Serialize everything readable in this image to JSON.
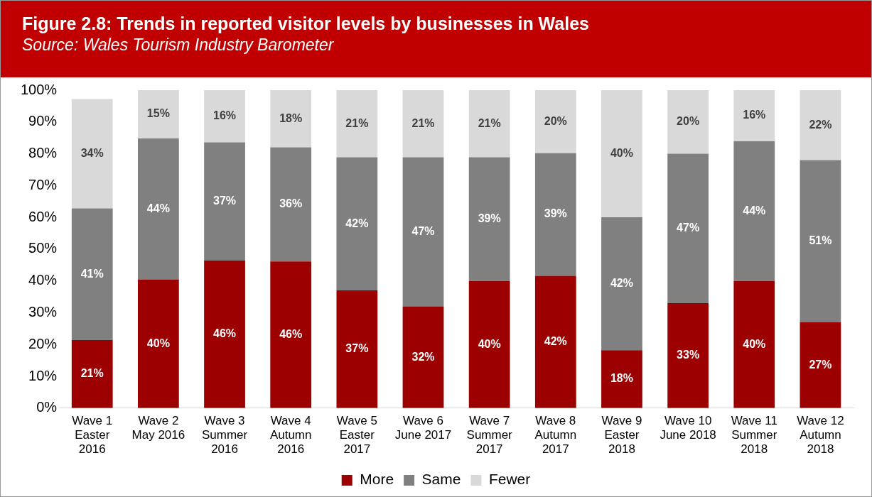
{
  "chart_data": {
    "type": "bar",
    "stacked": true,
    "title": "Figure 2.8: Trends in reported visitor levels by businesses in Wales",
    "subtitle": "Source: Wales Tourism Industry Barometer",
    "categories": [
      "Wave 1\nEaster\n2016",
      "Wave 2\nMay 2016",
      "Wave 3\nSummer\n2016",
      "Wave 4\nAutumn\n2016",
      "Wave 5\nEaster\n2017",
      "Wave 6\nJune 2017",
      "Wave 7\nSummer\n2017",
      "Wave 8\nAutumn\n2017",
      "Wave 9\nEaster\n2018",
      "Wave 10\nJune 2018",
      "Wave 11\nSummer\n2018",
      "Wave 12\nAutumn\n2018"
    ],
    "series": [
      {
        "name": "More",
        "color": "#9c0000",
        "values": [
          21.4,
          40.5,
          46.4,
          46.1,
          37.0,
          32.0,
          40.0,
          41.6,
          18.2,
          33.0,
          40.0,
          27.0
        ],
        "value_labels": [
          "21%",
          "40%",
          "46%",
          "46%",
          "37%",
          "32%",
          "40%",
          "42%",
          "18%",
          "33%",
          "40%",
          "27%"
        ]
      },
      {
        "name": "Same",
        "color": "#808080",
        "values": [
          41.4,
          44.3,
          37.2,
          35.9,
          41.9,
          46.9,
          38.9,
          38.6,
          41.8,
          47.0,
          43.9,
          51.0
        ],
        "value_labels": [
          "41%",
          "44%",
          "37%",
          "36%",
          "42%",
          "47%",
          "39%",
          "39%",
          "42%",
          "47%",
          "44%",
          "51%"
        ]
      },
      {
        "name": "Fewer",
        "color": "#d9d9d9",
        "values": [
          34.4,
          15.2,
          16.4,
          18.0,
          21.1,
          21.1,
          21.1,
          19.8,
          40.0,
          20.0,
          16.1,
          22.0
        ],
        "value_labels": [
          "34%",
          "15%",
          "16%",
          "18%",
          "21%",
          "21%",
          "21%",
          "20%",
          "40%",
          "20%",
          "16%",
          "22%"
        ]
      }
    ],
    "ylim": [
      0,
      100
    ],
    "yticks": [
      {
        "value": 0,
        "label": "0%"
      },
      {
        "value": 10,
        "label": "10%"
      },
      {
        "value": 20,
        "label": "20%"
      },
      {
        "value": 30,
        "label": "30%"
      },
      {
        "value": 40,
        "label": "40%"
      },
      {
        "value": 50,
        "label": "50%"
      },
      {
        "value": 60,
        "label": "60%"
      },
      {
        "value": 70,
        "label": "70%"
      },
      {
        "value": 80,
        "label": "80%"
      },
      {
        "value": 90,
        "label": "90%"
      },
      {
        "value": 100,
        "label": "100%"
      }
    ],
    "grid": false,
    "legend": "bottom"
  }
}
